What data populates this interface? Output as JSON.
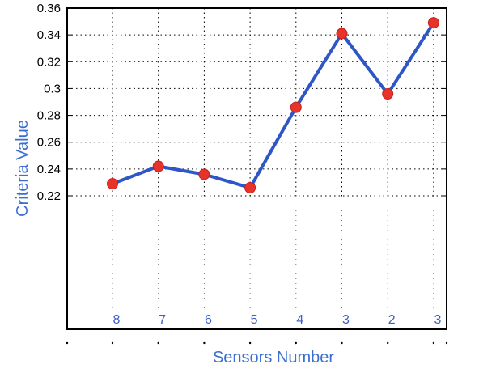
{
  "chart_data": {
    "type": "line",
    "title": "",
    "xlabel": "Sensors Number",
    "ylabel": "Criteria Value",
    "x": [
      1,
      2,
      3,
      4,
      5,
      6,
      7,
      8
    ],
    "sensor_labels": [
      "8",
      "7",
      "6",
      "5",
      "4",
      "3",
      "2",
      "3"
    ],
    "series": [
      {
        "values": [
          0.229,
          0.242,
          0.236,
          0.226,
          0.286,
          0.341,
          0.296,
          0.349
        ]
      }
    ],
    "y_ticks": [
      0.22,
      0.24,
      0.26,
      0.28,
      0.3,
      0.32,
      0.34,
      0.36
    ],
    "y_tick_labels": [
      "0.22",
      "0.24",
      "0.26",
      "0.28",
      "0.3",
      "0.32",
      "0.34",
      "0.36"
    ],
    "ylim_top": 0.36,
    "grid": true,
    "line_color": "#2f56c6",
    "marker_color": "#e8332a",
    "label_color": "#3a6fd0"
  }
}
